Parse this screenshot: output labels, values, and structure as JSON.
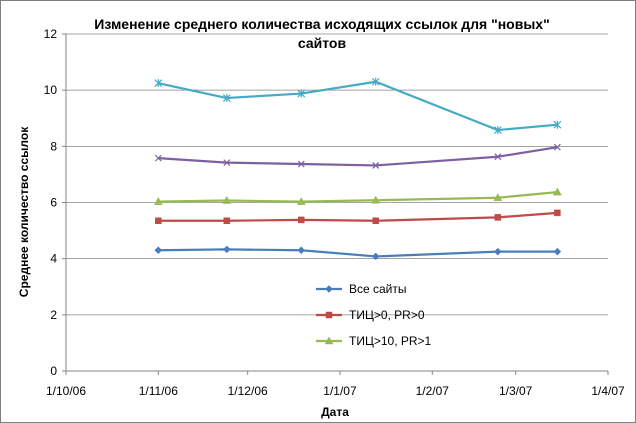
{
  "chart_data": {
    "type": "line",
    "title_line1": "Изменение среднего количества исходящих ссылок для \"новых\"",
    "title_line2": "сайтов",
    "xlabel": "Дата",
    "ylabel": "Среднее количество ссылок",
    "ylim": [
      0,
      12
    ],
    "y_ticks": [
      0,
      2,
      4,
      6,
      8,
      10,
      12
    ],
    "xlim": [
      "2006-10-01",
      "2007-04-01"
    ],
    "x_ticks": [
      {
        "date": "2006-10-01",
        "label": "1/10/06"
      },
      {
        "date": "2006-11-01",
        "label": "1/11/06"
      },
      {
        "date": "2006-12-01",
        "label": "1/12/06"
      },
      {
        "date": "2007-01-01",
        "label": "1/1/07"
      },
      {
        "date": "2007-02-01",
        "label": "1/2/07"
      },
      {
        "date": "2007-03-01",
        "label": "1/3/07"
      },
      {
        "date": "2007-04-01",
        "label": "1/4/07"
      }
    ],
    "grid": "horizontal",
    "legend_position": "inside-bottom-center",
    "x": [
      "2006-11-01",
      "2006-11-24",
      "2006-12-19",
      "2007-01-13",
      "2007-02-23",
      "2007-03-15"
    ],
    "series": [
      {
        "name": "Все сайты",
        "color": "#4a7ebb",
        "marker": "diamond",
        "in_legend": true,
        "values": [
          4.3,
          4.33,
          4.3,
          4.08,
          4.25,
          4.25
        ]
      },
      {
        "name": "ТИЦ>0, PR>0",
        "color": "#be4b48",
        "marker": "square",
        "in_legend": true,
        "values": [
          5.35,
          5.35,
          5.38,
          5.35,
          5.47,
          5.63
        ]
      },
      {
        "name": "ТИЦ>10, PR>1",
        "color": "#98b954",
        "marker": "triangle",
        "in_legend": true,
        "values": [
          6.03,
          6.07,
          6.03,
          6.08,
          6.17,
          6.37
        ]
      },
      {
        "color": "#7d60a0",
        "marker": "x",
        "in_legend": false,
        "values": [
          7.58,
          7.42,
          7.37,
          7.32,
          7.63,
          7.97
        ]
      },
      {
        "color": "#46aac5",
        "marker": "star",
        "in_legend": false,
        "values": [
          10.25,
          9.72,
          9.88,
          10.3,
          8.58,
          8.77
        ]
      }
    ]
  }
}
